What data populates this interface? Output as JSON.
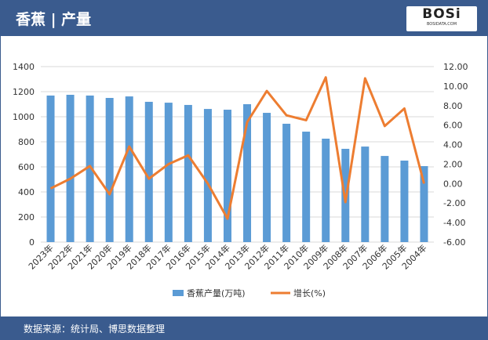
{
  "header": {
    "title": "香蕉 | 产量",
    "logo_text": "BOSi",
    "logo_sub": "BOSIDATA.COM"
  },
  "footer": {
    "source": "数据来源：统计局、博思数据整理"
  },
  "chart_data": {
    "type": "bar",
    "categories": [
      "2023年",
      "2022年",
      "2021年",
      "2020年",
      "2019年",
      "2018年",
      "2017年",
      "2016年",
      "2015年",
      "2014年",
      "2013年",
      "2012年",
      "2011年",
      "2010年",
      "2009年",
      "2008年",
      "2007年",
      "2006年",
      "2005年",
      "2004年"
    ],
    "series": [
      {
        "name": "香蕉产量(万吨)",
        "type": "bar",
        "axis": "left",
        "color": "#5b9bd5",
        "values": [
          1169,
          1175,
          1169,
          1150,
          1162,
          1119,
          1112,
          1094,
          1062,
          1056,
          1100,
          1031,
          944,
          881,
          825,
          744,
          762,
          687,
          650,
          606
        ]
      },
      {
        "name": "增长(%)",
        "type": "line",
        "axis": "right",
        "color": "#ed7d31",
        "values": [
          -0.5,
          0.5,
          1.8,
          -1.1,
          3.8,
          0.5,
          2.0,
          2.9,
          0.0,
          -3.6,
          6.3,
          9.5,
          7.0,
          6.5,
          10.9,
          -1.9,
          10.8,
          5.9,
          7.7,
          0.0
        ]
      }
    ],
    "left_axis": {
      "ylim": [
        0,
        1400
      ],
      "ticks": [
        "0",
        "200",
        "400",
        "600",
        "800",
        "1000",
        "1200",
        "1400"
      ]
    },
    "right_axis": {
      "ylim": [
        -6,
        12
      ],
      "ticks": [
        "-6.00",
        "-4.00",
        "-2.00",
        "0.00",
        "2.00",
        "4.00",
        "6.00",
        "8.00",
        "10.00",
        "12.00"
      ]
    },
    "grid": true,
    "legend": "bottom"
  }
}
